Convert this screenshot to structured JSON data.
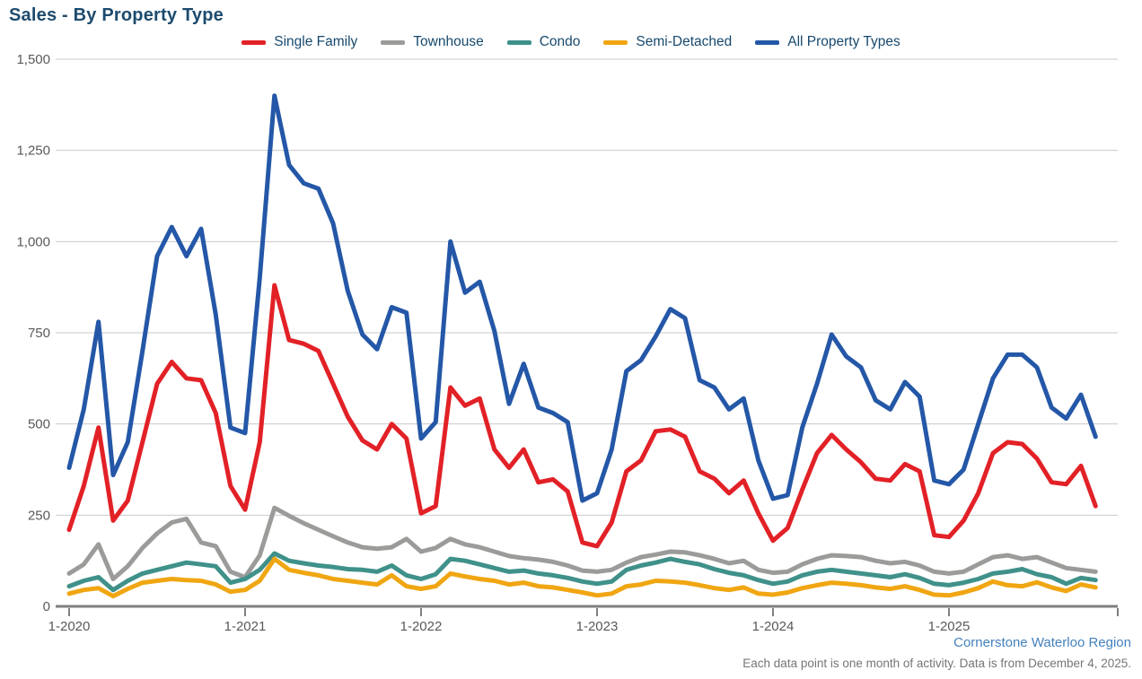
{
  "header": {
    "title": "Sales - By Property Type"
  },
  "footer": {
    "brand": "Cornerstone Waterloo Region",
    "note": "Each data point is one month of activity. Data is from December 4, 2025."
  },
  "palette": {
    "grid_line": "#c9c9c9",
    "axis_line": "#7f7f7f",
    "tick_label": "#595959",
    "title_text": "#1d4b6e",
    "legend_text": "#17496e",
    "brand_link": "#4481bd",
    "note_text": "#757575"
  },
  "chart_data": {
    "type": "line",
    "title": "Sales - By Property Type",
    "xlabel": "",
    "ylabel": "",
    "ylim": [
      0,
      1500
    ],
    "grid": true,
    "legend_position": "top-center",
    "y_ticks": [
      0,
      250,
      500,
      750,
      1000,
      1250,
      1500
    ],
    "y_tick_labels": [
      "0",
      "250",
      "500",
      "750",
      "1,000",
      "1,250",
      "1,500"
    ],
    "x_tick_labels": [
      "1-2020",
      "1-2021",
      "1-2022",
      "1-2023",
      "1-2024",
      "1-2025"
    ],
    "x": [
      "1-2020",
      "2-2020",
      "3-2020",
      "4-2020",
      "5-2020",
      "6-2020",
      "7-2020",
      "8-2020",
      "9-2020",
      "10-2020",
      "11-2020",
      "12-2020",
      "1-2021",
      "2-2021",
      "3-2021",
      "4-2021",
      "5-2021",
      "6-2021",
      "7-2021",
      "8-2021",
      "9-2021",
      "10-2021",
      "11-2021",
      "12-2021",
      "1-2022",
      "2-2022",
      "3-2022",
      "4-2022",
      "5-2022",
      "6-2022",
      "7-2022",
      "8-2022",
      "9-2022",
      "10-2022",
      "11-2022",
      "12-2022",
      "1-2023",
      "2-2023",
      "3-2023",
      "4-2023",
      "5-2023",
      "6-2023",
      "7-2023",
      "8-2023",
      "9-2023",
      "10-2023",
      "11-2023",
      "12-2023",
      "1-2024",
      "2-2024",
      "3-2024",
      "4-2024",
      "5-2024",
      "6-2024",
      "7-2024",
      "8-2024",
      "9-2024",
      "10-2024",
      "11-2024",
      "12-2024",
      "1-2025",
      "2-2025",
      "3-2025",
      "4-2025",
      "5-2025",
      "6-2025",
      "7-2025",
      "8-2025",
      "9-2025",
      "10-2025",
      "11-2025"
    ],
    "series": [
      {
        "name": "Single Family",
        "color": "#e22127",
        "values": [
          210,
          330,
          490,
          235,
          290,
          450,
          610,
          670,
          625,
          620,
          530,
          330,
          265,
          450,
          880,
          730,
          720,
          700,
          610,
          520,
          455,
          430,
          500,
          460,
          255,
          275,
          600,
          550,
          570,
          430,
          380,
          430,
          340,
          348,
          315,
          175,
          165,
          230,
          370,
          400,
          480,
          485,
          465,
          370,
          350,
          310,
          345,
          255,
          180,
          215,
          320,
          420,
          470,
          430,
          395,
          350,
          345,
          390,
          370,
          195,
          190,
          235,
          310,
          420,
          450,
          445,
          405,
          340,
          335,
          385,
          275
        ]
      },
      {
        "name": "Townhouse",
        "color": "#9b9b99",
        "values": [
          90,
          115,
          170,
          75,
          110,
          160,
          200,
          230,
          240,
          175,
          165,
          95,
          80,
          140,
          270,
          248,
          228,
          210,
          192,
          175,
          162,
          158,
          162,
          185,
          150,
          160,
          185,
          170,
          162,
          150,
          138,
          132,
          128,
          122,
          112,
          98,
          95,
          100,
          120,
          135,
          142,
          150,
          148,
          140,
          130,
          118,
          125,
          100,
          92,
          95,
          115,
          130,
          140,
          138,
          135,
          125,
          118,
          122,
          112,
          95,
          90,
          95,
          115,
          135,
          140,
          130,
          135,
          120,
          105,
          100,
          95
        ]
      },
      {
        "name": "Condo",
        "color": "#3f918a",
        "values": [
          55,
          70,
          80,
          45,
          70,
          90,
          100,
          110,
          120,
          115,
          110,
          65,
          75,
          100,
          145,
          125,
          118,
          112,
          108,
          102,
          100,
          95,
          112,
          85,
          75,
          88,
          130,
          125,
          115,
          105,
          95,
          98,
          90,
          85,
          78,
          68,
          62,
          68,
          100,
          112,
          120,
          130,
          122,
          115,
          102,
          92,
          85,
          72,
          62,
          68,
          85,
          95,
          100,
          95,
          90,
          85,
          80,
          88,
          78,
          62,
          58,
          65,
          75,
          90,
          95,
          102,
          88,
          80,
          62,
          78,
          72
        ]
      },
      {
        "name": "Semi-Detached",
        "color": "#f0a612",
        "values": [
          35,
          45,
          50,
          28,
          48,
          65,
          70,
          75,
          72,
          70,
          60,
          40,
          45,
          70,
          130,
          100,
          92,
          85,
          75,
          70,
          65,
          60,
          85,
          55,
          48,
          55,
          90,
          82,
          75,
          70,
          60,
          65,
          55,
          52,
          45,
          38,
          30,
          35,
          55,
          60,
          70,
          68,
          65,
          58,
          50,
          45,
          52,
          35,
          32,
          38,
          50,
          58,
          65,
          62,
          58,
          52,
          48,
          55,
          45,
          32,
          30,
          38,
          50,
          68,
          58,
          55,
          66,
          52,
          42,
          60,
          52
        ]
      },
      {
        "name": "All Property Types",
        "color": "#2457a7",
        "values": [
          380,
          540,
          780,
          360,
          450,
          700,
          960,
          1040,
          960,
          1035,
          800,
          490,
          475,
          900,
          1400,
          1210,
          1160,
          1145,
          1050,
          865,
          745,
          705,
          820,
          805,
          460,
          505,
          1000,
          860,
          890,
          755,
          555,
          665,
          545,
          530,
          505,
          290,
          310,
          430,
          645,
          675,
          740,
          815,
          790,
          620,
          600,
          540,
          570,
          400,
          295,
          305,
          490,
          610,
          745,
          685,
          655,
          565,
          540,
          615,
          575,
          345,
          335,
          375,
          500,
          625,
          690,
          690,
          655,
          545,
          515,
          580,
          465
        ]
      }
    ]
  }
}
